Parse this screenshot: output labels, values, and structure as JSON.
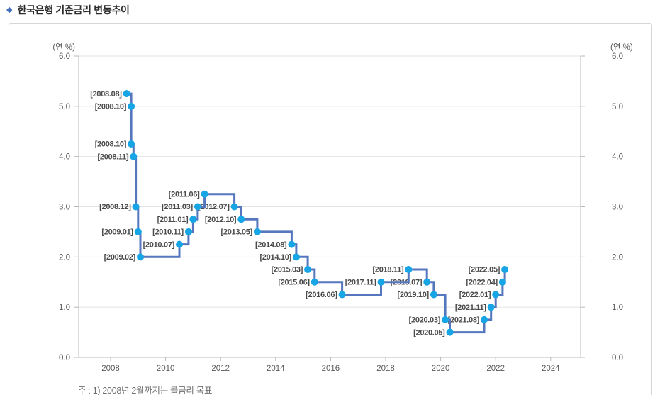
{
  "title": "한국은행 기준금리 변동추이",
  "title_bullet": "◆",
  "chart_data": {
    "type": "line",
    "line_style": "step-after",
    "series_name": "한국은행 기준금리",
    "unit_label": "(연 %)",
    "ylim": [
      0,
      6
    ],
    "ytick_step": 1,
    "xticks": [
      2008,
      2010,
      2012,
      2014,
      2016,
      2018,
      2020,
      2022,
      2024
    ],
    "grid": "horizontal",
    "legend": "none",
    "line_color": "#5577be",
    "marker_color": "#18a5e6",
    "note": "주 : 1) 2008년 2월까지는 콜금리 목표",
    "points": [
      {
        "label": "[2008.08]",
        "year": 2008,
        "month": 8,
        "rate": 5.25
      },
      {
        "label": "[2008.10]",
        "year": 2008,
        "month": 10,
        "rate": 5.0
      },
      {
        "label": "[2008.10]",
        "year": 2008,
        "month": 10,
        "rate": 4.25
      },
      {
        "label": "[2008.11]",
        "year": 2008,
        "month": 11,
        "rate": 4.0
      },
      {
        "label": "[2008.12]",
        "year": 2008,
        "month": 12,
        "rate": 3.0
      },
      {
        "label": "[2009.01]",
        "year": 2009,
        "month": 1,
        "rate": 2.5
      },
      {
        "label": "[2009.02]",
        "year": 2009,
        "month": 2,
        "rate": 2.0
      },
      {
        "label": "[2010.07]",
        "year": 2010,
        "month": 7,
        "rate": 2.25
      },
      {
        "label": "[2010.11]",
        "year": 2010,
        "month": 11,
        "rate": 2.5
      },
      {
        "label": "[2011.01]",
        "year": 2011,
        "month": 1,
        "rate": 2.75
      },
      {
        "label": "[2011.03]",
        "year": 2011,
        "month": 3,
        "rate": 3.0
      },
      {
        "label": "[2011.06]",
        "year": 2011,
        "month": 6,
        "rate": 3.25
      },
      {
        "label": "[2012.07]",
        "year": 2012,
        "month": 7,
        "rate": 3.0
      },
      {
        "label": "[2012.10]",
        "year": 2012,
        "month": 10,
        "rate": 2.75
      },
      {
        "label": "[2013.05]",
        "year": 2013,
        "month": 5,
        "rate": 2.5
      },
      {
        "label": "[2014.08]",
        "year": 2014,
        "month": 8,
        "rate": 2.25
      },
      {
        "label": "[2014.10]",
        "year": 2014,
        "month": 10,
        "rate": 2.0
      },
      {
        "label": "[2015.03]",
        "year": 2015,
        "month": 3,
        "rate": 1.75
      },
      {
        "label": "[2015.06]",
        "year": 2015,
        "month": 6,
        "rate": 1.5
      },
      {
        "label": "[2016.06]",
        "year": 2016,
        "month": 6,
        "rate": 1.25
      },
      {
        "label": "[2017.11]",
        "year": 2017,
        "month": 11,
        "rate": 1.5
      },
      {
        "label": "[2018.11]",
        "year": 2018,
        "month": 11,
        "rate": 1.75
      },
      {
        "label": "[2019.07]",
        "year": 2019,
        "month": 7,
        "rate": 1.5
      },
      {
        "label": "[2019.10]",
        "year": 2019,
        "month": 10,
        "rate": 1.25
      },
      {
        "label": "[2020.03]",
        "year": 2020,
        "month": 3,
        "rate": 0.75
      },
      {
        "label": "[2020.05]",
        "year": 2020,
        "month": 5,
        "rate": 0.5
      },
      {
        "label": "[2021.08]",
        "year": 2021,
        "month": 8,
        "rate": 0.75
      },
      {
        "label": "[2021.11]",
        "year": 2021,
        "month": 11,
        "rate": 1.0
      },
      {
        "label": "[2022.01]",
        "year": 2022,
        "month": 1,
        "rate": 1.25
      },
      {
        "label": "[2022.04]",
        "year": 2022,
        "month": 4,
        "rate": 1.5
      },
      {
        "label": "[2022.05]",
        "year": 2022,
        "month": 5,
        "rate": 1.75
      }
    ]
  }
}
